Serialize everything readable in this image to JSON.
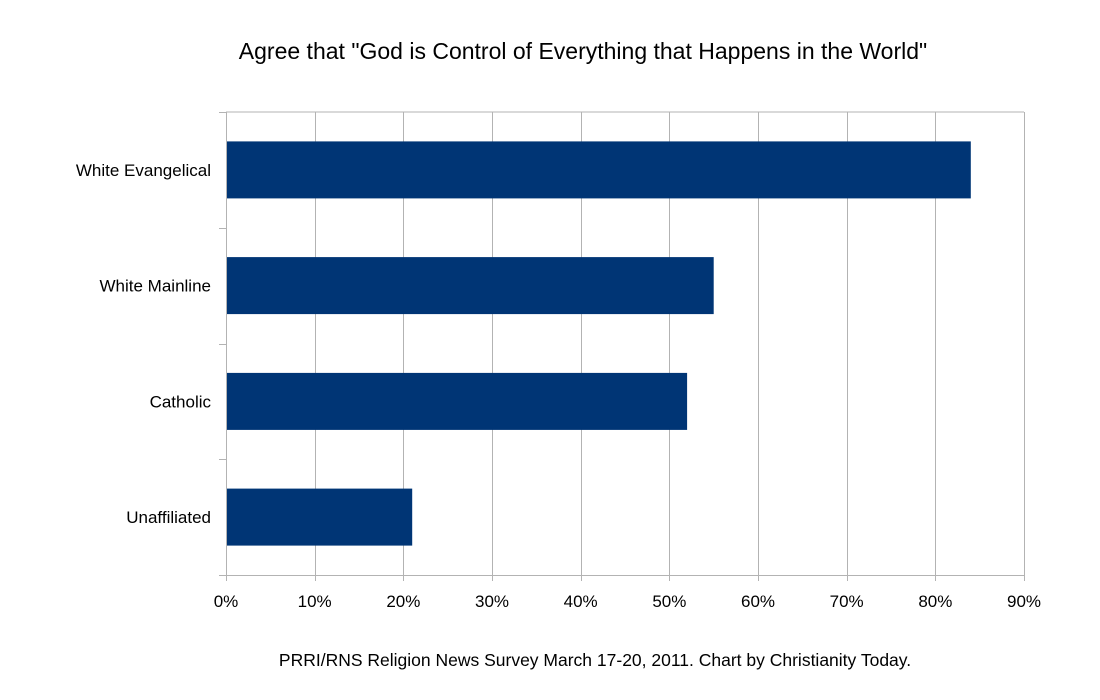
{
  "chart_data": {
    "type": "bar",
    "orientation": "horizontal",
    "title": "Agree that \"God is Control of Everything that Happens in the World\"",
    "categories": [
      "White Evangelical",
      "White Mainline",
      "Catholic",
      "Unaffiliated"
    ],
    "values": [
      84,
      55,
      52,
      21
    ],
    "xlim": [
      0,
      90
    ],
    "x_ticks": [
      0,
      10,
      20,
      30,
      40,
      50,
      60,
      70,
      80,
      90
    ],
    "x_tick_labels": [
      "0%",
      "10%",
      "20%",
      "30%",
      "40%",
      "50%",
      "60%",
      "70%",
      "80%",
      "90%"
    ],
    "xlabel": "",
    "ylabel": "",
    "grid": "vertical",
    "legend": "none",
    "bar_color": "#003575",
    "source": "PRRI/RNS Religion News Survey March 17-20, 2011.  Chart by Christianity Today."
  }
}
